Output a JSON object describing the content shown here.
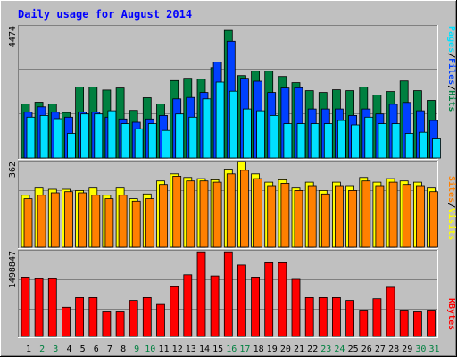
{
  "title": "Daily usage for August 2014",
  "colors": {
    "background": "#C0C0C0",
    "title": "#0000FF",
    "grid": "#808080",
    "hits": "#008040",
    "files": "#0040FF",
    "pages": "#00E0FF",
    "visits": "#FFFF00",
    "sites": "#FF8000",
    "kbytes": "#FF0000",
    "weekend_day": "#008040",
    "weekday": "#000000"
  },
  "chart_data": [
    {
      "type": "bar",
      "panel": "requests",
      "ymax_label": "4474",
      "ylim": [
        0,
        4474
      ],
      "categories": [
        "1",
        "2",
        "3",
        "4",
        "5",
        "6",
        "7",
        "8",
        "9",
        "10",
        "11",
        "12",
        "13",
        "14",
        "15",
        "16",
        "17",
        "18",
        "19",
        "20",
        "21",
        "22",
        "23",
        "24",
        "25",
        "26",
        "27",
        "28",
        "29",
        "30",
        "31"
      ],
      "legend": [
        "Pages",
        "/",
        "Files",
        "/",
        "Hits"
      ],
      "series": [
        {
          "name": "Hits",
          "values": [
            1830,
            1890,
            1830,
            1540,
            2400,
            2400,
            2300,
            2370,
            1610,
            2040,
            1830,
            2620,
            2700,
            2670,
            3060,
            4320,
            2790,
            2940,
            2940,
            2760,
            2550,
            2280,
            2220,
            2310,
            2280,
            2400,
            2130,
            2250,
            2610,
            2280,
            1950
          ]
        },
        {
          "name": "Files",
          "values": [
            1550,
            1730,
            1550,
            1380,
            1550,
            1550,
            1380,
            1320,
            1210,
            1320,
            1440,
            2000,
            2050,
            2220,
            3250,
            3950,
            2700,
            2600,
            2220,
            2370,
            2380,
            1660,
            1660,
            1660,
            1440,
            1660,
            1490,
            1820,
            1880,
            1600,
            1270
          ]
        },
        {
          "name": "Pages",
          "values": [
            1380,
            1440,
            1330,
            830,
            1490,
            1490,
            1600,
            1160,
            990,
            1160,
            930,
            1490,
            1380,
            2000,
            2570,
            2260,
            1660,
            1600,
            1440,
            1160,
            1160,
            1160,
            1160,
            1270,
            1120,
            1380,
            1160,
            1160,
            830,
            870,
            650
          ]
        }
      ]
    },
    {
      "type": "bar",
      "panel": "visitors",
      "ymax_label": "362",
      "ylim": [
        0,
        362
      ],
      "categories": [
        "1",
        "2",
        "3",
        "4",
        "5",
        "6",
        "7",
        "8",
        "9",
        "10",
        "11",
        "12",
        "13",
        "14",
        "15",
        "16",
        "17",
        "18",
        "19",
        "20",
        "21",
        "22",
        "23",
        "24",
        "25",
        "26",
        "27",
        "28",
        "29",
        "30",
        "31"
      ],
      "legend": [
        "Sites",
        "/",
        "Visits"
      ],
      "series": [
        {
          "name": "Visits",
          "values": [
            220,
            250,
            245,
            245,
            240,
            250,
            220,
            250,
            205,
            225,
            280,
            310,
            295,
            290,
            285,
            330,
            362,
            310,
            275,
            285,
            250,
            275,
            240,
            275,
            260,
            295,
            275,
            290,
            280,
            275,
            250
          ]
        },
        {
          "name": "Sites",
          "values": [
            205,
            220,
            230,
            235,
            230,
            220,
            205,
            220,
            195,
            205,
            265,
            300,
            280,
            280,
            275,
            310,
            325,
            290,
            260,
            270,
            240,
            260,
            225,
            260,
            240,
            280,
            260,
            275,
            265,
            260,
            235
          ]
        }
      ]
    },
    {
      "type": "bar",
      "panel": "kbytes",
      "ymax_label": "1498847",
      "ylim": [
        0,
        1498847
      ],
      "categories": [
        "1",
        "2",
        "3",
        "4",
        "5",
        "6",
        "7",
        "8",
        "9",
        "10",
        "11",
        "12",
        "13",
        "14",
        "15",
        "16",
        "17",
        "18",
        "19",
        "20",
        "21",
        "22",
        "23",
        "24",
        "25",
        "26",
        "27",
        "28",
        "29",
        "30",
        "31"
      ],
      "legend": [
        "KBytes"
      ],
      "series": [
        {
          "name": "KBytes",
          "values": [
            1040000,
            1010000,
            1010000,
            510000,
            680000,
            680000,
            430000,
            430000,
            630000,
            680000,
            560000,
            870000,
            1080000,
            1480000,
            1060000,
            1480000,
            1250000,
            1040000,
            1290000,
            1290000,
            1000000,
            680000,
            680000,
            680000,
            630000,
            460000,
            660000,
            860000,
            460000,
            430000,
            460000
          ]
        }
      ]
    }
  ]
}
